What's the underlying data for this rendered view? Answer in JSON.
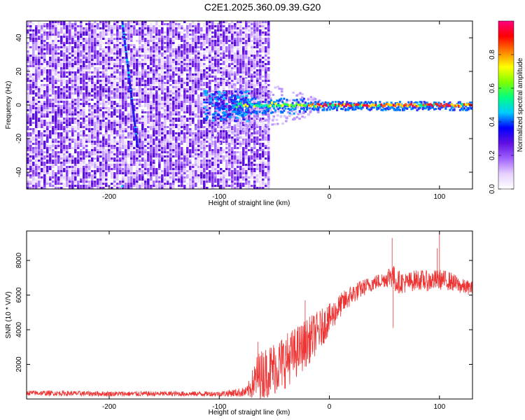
{
  "title": "C2E1.2025.360.09.39.G20",
  "chart_data": [
    {
      "type": "heatmap",
      "xlabel": "Height of straight line (km)",
      "ylabel": "Frequency (Hz)",
      "xlim": [
        -275,
        130
      ],
      "ylim": [
        -50,
        50
      ],
      "xticks": [
        -200,
        -100,
        0,
        100
      ],
      "xtick_labels": [
        "-200",
        "-100",
        "0",
        "100"
      ],
      "yticks": [
        -40,
        -20,
        0,
        20,
        40
      ],
      "ytick_labels": [
        "-40",
        "-20",
        "0",
        "20",
        "40"
      ],
      "colorbar": {
        "label": "Normalized spectral amplitude",
        "range": [
          0,
          1
        ],
        "ticks": [
          0.0,
          0.2,
          0.4,
          0.6,
          0.8
        ],
        "tick_labels": [
          "0.0",
          "0.2",
          "0.4",
          "0.6",
          "0.8"
        ],
        "colormap": [
          "#ffffff",
          "#e6d0ff",
          "#a060ff",
          "#6010e0",
          "#0000ff",
          "#00ccff",
          "#00ff80",
          "#80ff00",
          "#ffff00",
          "#ff8000",
          "#ff0000",
          "#ff0080"
        ]
      },
      "features": {
        "noise_region_x": [
          -275,
          -80
        ],
        "slanted_line": {
          "x_start": -188,
          "f_start": 50,
          "x_end": -174,
          "f_end": -25
        },
        "carrier_line": {
          "x_start": -85,
          "x_end": 130,
          "frequency": 0
        }
      }
    },
    {
      "type": "line",
      "xlabel": "Height of straight line (km)",
      "ylabel": "SNR (10 * V/V)",
      "xlim": [
        -275,
        130
      ],
      "ylim": [
        0,
        9700
      ],
      "xticks": [
        -200,
        -100,
        0,
        100
      ],
      "xtick_labels": [
        "-200",
        "-100",
        "0",
        "100"
      ],
      "yticks": [
        2000,
        4000,
        6000,
        8000
      ],
      "ytick_labels": [
        "2000",
        "4000",
        "6000",
        "8000"
      ],
      "color": "#ee3333",
      "envelope": {
        "x": [
          -275,
          -200,
          -100,
          -75,
          -65,
          -50,
          -40,
          -30,
          -20,
          -10,
          0,
          10,
          20,
          30,
          40,
          50,
          57,
          60,
          70,
          80,
          90,
          100,
          110,
          120,
          130
        ],
        "mean": [
          350,
          300,
          300,
          400,
          1300,
          1800,
          2200,
          2700,
          3300,
          3900,
          4600,
          5400,
          6000,
          6400,
          6700,
          6900,
          7200,
          6800,
          6700,
          6900,
          6800,
          6900,
          6800,
          6500,
          6400
        ],
        "spread": [
          150,
          150,
          150,
          300,
          1400,
          1600,
          1600,
          1500,
          1400,
          1200,
          900,
          700,
          600,
          500,
          450,
          450,
          800,
          700,
          600,
          600,
          600,
          600,
          550,
          450,
          400
        ]
      },
      "spikes": [
        {
          "x": -65,
          "y": 3300
        },
        {
          "x": -22,
          "y": 5700
        },
        {
          "x": -2,
          "y": 5300
        },
        {
          "x": 55,
          "y": 7300
        },
        {
          "x": 57,
          "y": 9300
        },
        {
          "x": 58,
          "y": 4100
        },
        {
          "x": 100,
          "y": 9700
        },
        {
          "x": 98,
          "y": 8700
        }
      ]
    }
  ]
}
